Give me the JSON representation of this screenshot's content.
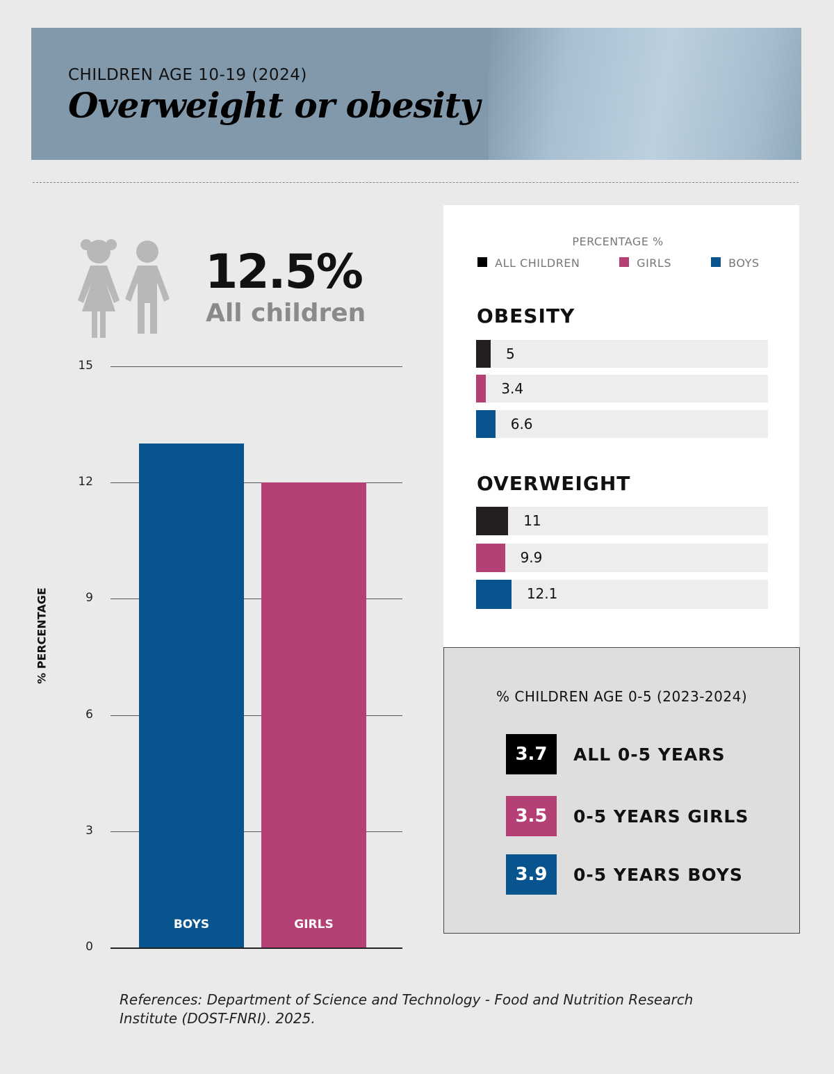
{
  "header": {
    "subtitle": "CHILDREN AGE 10-19 (2024)",
    "title": "Overweight or obesity"
  },
  "summary": {
    "value": "12.5%",
    "label": "All children"
  },
  "colors": {
    "all": "#231f20",
    "girls": "#b54076",
    "boys": "#08548f",
    "grid": "#555555"
  },
  "chart_data": [
    {
      "type": "bar",
      "title": "Overweight or obesity, children age 10-19 (2024)",
      "ylabel": "% PERCENTAGE",
      "xlabel": "",
      "ylim": [
        0,
        15
      ],
      "yticks": [
        0,
        3,
        6,
        9,
        12,
        15
      ],
      "grid": true,
      "categories": [
        "BOYS",
        "GIRLS"
      ],
      "values": [
        13,
        12
      ]
    },
    {
      "type": "bar",
      "orientation": "horizontal",
      "title": "PERCENTAGE %",
      "legend": [
        "ALL CHILDREN",
        "GIRLS",
        "BOYS"
      ],
      "legend_position": "top",
      "xlim": [
        0,
        100
      ],
      "groups": [
        {
          "name": "OBESITY",
          "values": [
            5,
            3.4,
            6.6
          ],
          "labels": [
            "5",
            "3.4",
            "6.6"
          ]
        },
        {
          "name": "OVERWEIGHT",
          "values": [
            11,
            9.9,
            12.1
          ],
          "labels": [
            "11",
            "9.9",
            "12.1"
          ]
        }
      ]
    }
  ],
  "age05": {
    "title": "% CHILDREN AGE 0-5 (2023-2024)",
    "items": [
      {
        "value": "3.7",
        "label": "ALL 0-5 YEARS"
      },
      {
        "value": "3.5",
        "label": "0-5 YEARS GIRLS"
      },
      {
        "value": "3.9",
        "label": "0-5 YEARS BOYS"
      }
    ]
  },
  "reference": "References: Department of Science and Technology - Food and Nutrition Research Institute (DOST-FNRI). 2025."
}
